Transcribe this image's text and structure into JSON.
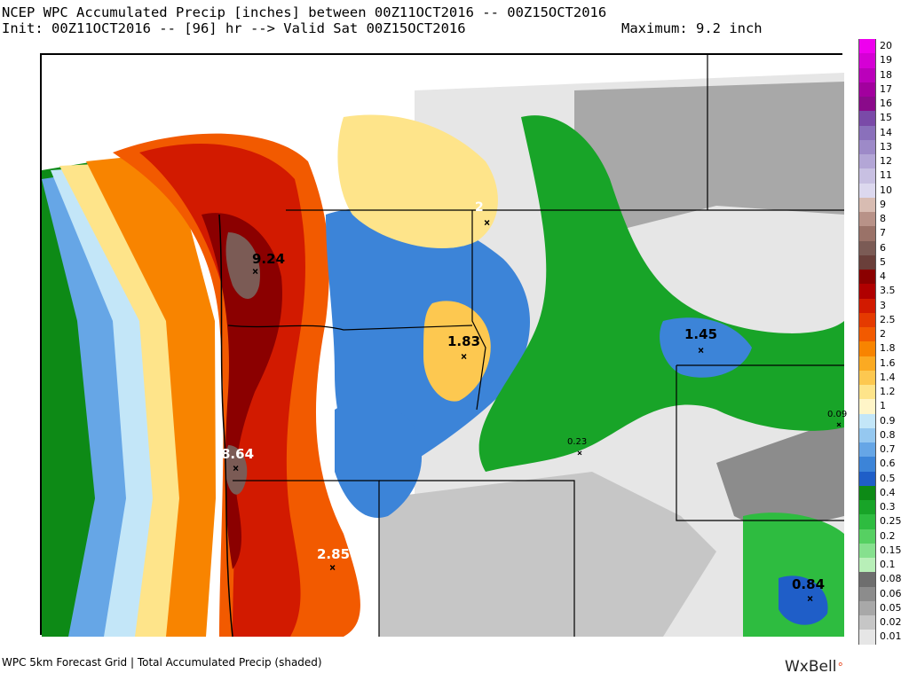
{
  "header": {
    "title": "NCEP WPC Accumulated Precip [inches] between 00Z11OCT2016 -- 00Z15OCT2016",
    "init": "Init: 00Z11OCT2016 -- [96] hr --> Valid Sat 00Z15OCT2016",
    "maximum": "Maximum: 9.2 inch"
  },
  "legend": {
    "levels": [
      {
        "label": "20",
        "color": "#ee00ee"
      },
      {
        "label": "19",
        "color": "#d500d5"
      },
      {
        "label": "18",
        "color": "#bb00bb"
      },
      {
        "label": "17",
        "color": "#a2009e"
      },
      {
        "label": "16",
        "color": "#8a0a8a"
      },
      {
        "label": "15",
        "color": "#7a4aa8"
      },
      {
        "label": "14",
        "color": "#8a70bb"
      },
      {
        "label": "13",
        "color": "#9d8ac8"
      },
      {
        "label": "12",
        "color": "#b3a6d6"
      },
      {
        "label": "11",
        "color": "#c8c0e2"
      },
      {
        "label": "10",
        "color": "#dcd8ee"
      },
      {
        "label": "9",
        "color": "#d8bcb2"
      },
      {
        "label": "8",
        "color": "#b89288"
      },
      {
        "label": "7",
        "color": "#9a7268"
      },
      {
        "label": "6",
        "color": "#7b5b55"
      },
      {
        "label": "5",
        "color": "#6a3f3a"
      },
      {
        "label": "4",
        "color": "#8b0000"
      },
      {
        "label": "3.5",
        "color": "#b00000"
      },
      {
        "label": "3",
        "color": "#d21a00"
      },
      {
        "label": "2.5",
        "color": "#e53a00"
      },
      {
        "label": "2",
        "color": "#f25a00"
      },
      {
        "label": "1.8",
        "color": "#f88400"
      },
      {
        "label": "1.6",
        "color": "#fbaa22"
      },
      {
        "label": "1.4",
        "color": "#fdc850"
      },
      {
        "label": "1.2",
        "color": "#fee48a"
      },
      {
        "label": "1",
        "color": "#fff5c8"
      },
      {
        "label": "0.9",
        "color": "#c3e6f8"
      },
      {
        "label": "0.8",
        "color": "#95c8f0"
      },
      {
        "label": "0.7",
        "color": "#66a6e6"
      },
      {
        "label": "0.6",
        "color": "#3c84d8"
      },
      {
        "label": "0.5",
        "color": "#1f5ec8"
      },
      {
        "label": "0.4",
        "color": "#0d8a16"
      },
      {
        "label": "0.3",
        "color": "#18a428"
      },
      {
        "label": "0.25",
        "color": "#2ebc40"
      },
      {
        "label": "0.2",
        "color": "#56d062"
      },
      {
        "label": "0.15",
        "color": "#86e08e"
      },
      {
        "label": "0.1",
        "color": "#b8efb8"
      },
      {
        "label": "0.08",
        "color": "#6e6e6e"
      },
      {
        "label": "0.06",
        "color": "#8c8c8c"
      },
      {
        "label": "0.05",
        "color": "#a8a8a8"
      },
      {
        "label": "0.02",
        "color": "#c6c6c6"
      },
      {
        "label": "0.01",
        "color": "#e6e6e6"
      }
    ]
  },
  "markers": [
    {
      "label": "9.24"
    },
    {
      "label": "8.64"
    },
    {
      "label": "2.85"
    },
    {
      "label": "2"
    },
    {
      "label": "1.83"
    },
    {
      "label": "1.45"
    },
    {
      "label": "0.84"
    },
    {
      "label": "0.23"
    },
    {
      "label": "0.09"
    }
  ],
  "footer": {
    "text": "WPC 5km Forecast Grid | Total Accumulated Precip (shaded)",
    "brand": "WxBell"
  }
}
